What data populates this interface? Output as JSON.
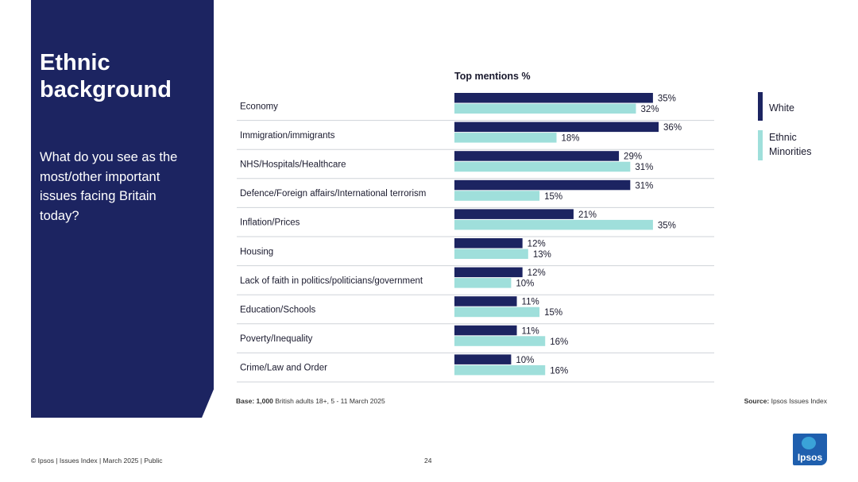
{
  "side_panel": {
    "title": "Ethnic background",
    "question": "What do you see as the most/other important issues facing Britain today?"
  },
  "legend": {
    "white": "White",
    "ethnic_minorities": "Ethnic Minorities"
  },
  "colors": {
    "white": "#1c2461",
    "ethnic_minorities": "#9fdfdb",
    "panel": "#1c2461"
  },
  "chart_data": {
    "type": "bar",
    "orientation": "horizontal",
    "title": "Top mentions %",
    "categories": [
      "Economy",
      "Immigration/immigrants",
      "NHS/Hospitals/Healthcare",
      "Defence/Foreign affairs/International terrorism",
      "Inflation/Prices",
      "Housing",
      "Lack of faith in politics/politicians/government",
      "Education/Schools",
      "Poverty/Inequality",
      "Crime/Law and Order"
    ],
    "series": [
      {
        "name": "White",
        "values": [
          35,
          36,
          29,
          31,
          21,
          12,
          12,
          11,
          11,
          10
        ]
      },
      {
        "name": "Ethnic Minorities",
        "values": [
          32,
          18,
          31,
          15,
          35,
          13,
          10,
          15,
          16,
          16
        ]
      }
    ],
    "value_suffix": "%",
    "xlim": [
      0,
      40
    ]
  },
  "notes": {
    "base_label": "Base:",
    "base_value": "1,000",
    "base_text": "British adults 18+, 5 - 11 March 2025",
    "source_label": "Source:",
    "source_text": "Ipsos Issues Index"
  },
  "footer": {
    "left": "© Ipsos | Issues Index | March 2025 | Public",
    "page_number": "24"
  },
  "logo": {
    "text": "Ipsos"
  }
}
